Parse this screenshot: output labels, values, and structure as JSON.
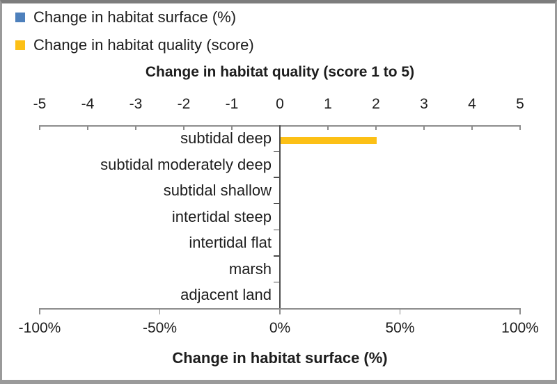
{
  "legend": {
    "items": [
      {
        "label": "Change in habitat surface (%)",
        "color": "#4E80BC"
      },
      {
        "label": "Change in habitat quality (score)",
        "color": "#FCC016"
      }
    ]
  },
  "chart_data": {
    "type": "bar",
    "orientation": "horizontal",
    "grid": false,
    "legend_position": "top-left",
    "categories": [
      "subtidal deep",
      "subtidal moderately deep",
      "subtidal shallow",
      "intertidal steep",
      "intertidal flat",
      "marsh",
      "adjacent land"
    ],
    "series": [
      {
        "name": "Change in habitat surface (%)",
        "axis": "bottom",
        "color": "#4E80BC",
        "values": [
          0,
          0,
          0,
          0,
          0,
          0,
          0
        ]
      },
      {
        "name": "Change in habitat quality (score)",
        "axis": "top",
        "color": "#FCC016",
        "values": [
          2,
          0,
          0,
          0,
          0,
          0,
          0
        ]
      }
    ],
    "top_axis": {
      "title": "Change in habitat quality (score 1 to 5)",
      "min": -5,
      "max": 5,
      "ticks": [
        -5,
        -4,
        -3,
        -2,
        -1,
        0,
        1,
        2,
        3,
        4,
        5
      ]
    },
    "bottom_axis": {
      "title": "Change in habitat surface (%)",
      "min": -100,
      "max": 100,
      "tick_values": [
        -100,
        -50,
        0,
        50,
        100
      ],
      "ticks": [
        "-100%",
        "-50%",
        "0%",
        "50%",
        "100%"
      ]
    }
  },
  "colors": {
    "axis_line": "#8c8c8c",
    "zero_line": "#4d4d4d",
    "text": "#1d1d1d",
    "frame_border": "#9a9a9a",
    "background": "#ffffff"
  }
}
